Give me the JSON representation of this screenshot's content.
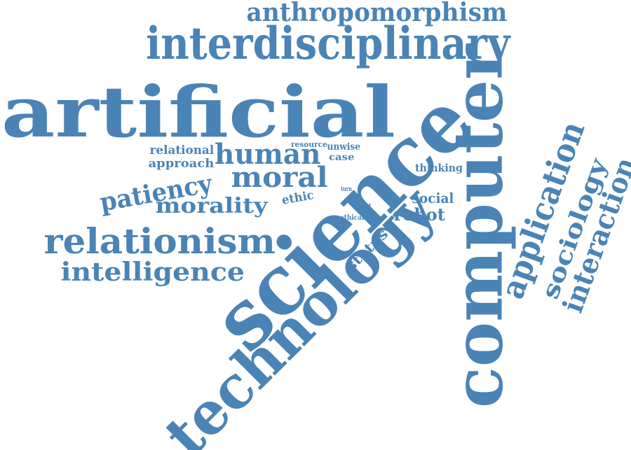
{
  "color": "#4a84b6",
  "words": [
    {
      "id": "artificial",
      "text": "artificial"
    },
    {
      "id": "science",
      "text": "science"
    },
    {
      "id": "computer",
      "text": "computer"
    },
    {
      "id": "technology",
      "text": "technology"
    },
    {
      "id": "interdisciplinary",
      "text": "interdisciplinary"
    },
    {
      "id": "anthropomorphism",
      "text": "anthropomorphism"
    },
    {
      "id": "relationism",
      "text": "relationism"
    },
    {
      "id": "intelligence",
      "text": "intelligence"
    },
    {
      "id": "human",
      "text": "human"
    },
    {
      "id": "moral",
      "text": "moral"
    },
    {
      "id": "patiency",
      "text": "patiency"
    },
    {
      "id": "morality",
      "text": "morality"
    },
    {
      "id": "relational",
      "text": "relational"
    },
    {
      "id": "approach",
      "text": "approach"
    },
    {
      "id": "resource",
      "text": "resource"
    },
    {
      "id": "unwise",
      "text": "unwise"
    },
    {
      "id": "case",
      "text": "case"
    },
    {
      "id": "thinking",
      "text": "thinking"
    },
    {
      "id": "social",
      "text": "social"
    },
    {
      "id": "robot",
      "text": "robot"
    },
    {
      "id": "ethic",
      "text": "ethic"
    },
    {
      "id": "turn",
      "text": "turn"
    },
    {
      "id": "extent",
      "text": "extent"
    },
    {
      "id": "ethical",
      "text": "ethical"
    },
    {
      "id": "status",
      "text": "status"
    },
    {
      "id": "application",
      "text": "application"
    },
    {
      "id": "sociology",
      "text": "sociology"
    },
    {
      "id": "interaction",
      "text": "interaction"
    }
  ]
}
